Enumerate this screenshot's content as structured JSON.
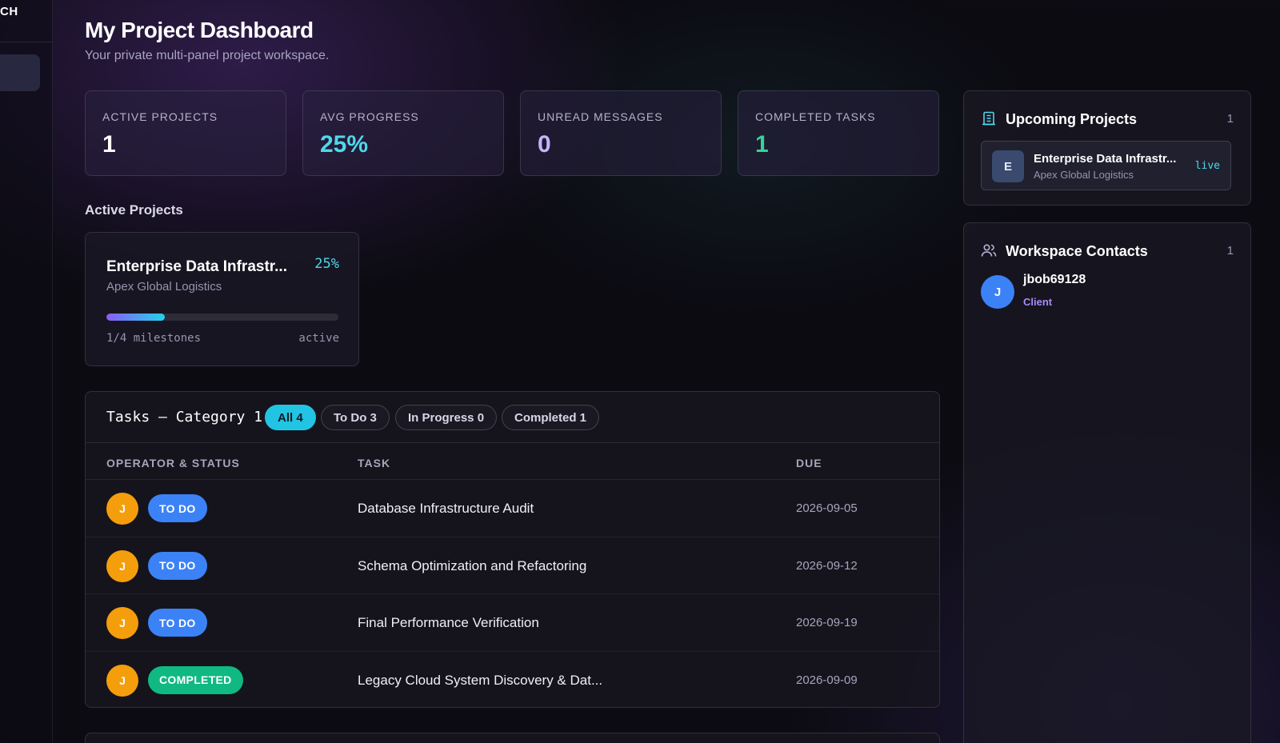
{
  "sidebar": {
    "logo_fragment": "CH"
  },
  "header": {
    "title": "My Project Dashboard",
    "subtitle": "Your private multi-panel project workspace."
  },
  "stats": [
    {
      "label": "ACTIVE PROJECTS",
      "value": "1",
      "color": "#ffffff"
    },
    {
      "label": "AVG PROGRESS",
      "value": "25%",
      "color": "#4fd8ea"
    },
    {
      "label": "UNREAD MESSAGES",
      "value": "0",
      "color": "#c4b5fd"
    },
    {
      "label": "COMPLETED TASKS",
      "value": "1",
      "color": "#34d399"
    }
  ],
  "active_projects": {
    "title": "Active Projects",
    "project": {
      "name": "Enterprise Data Infrastr...",
      "client": "Apex Global Logistics",
      "progress_label": "25%",
      "progress": 0.25,
      "milestones": "1/4 milestones",
      "state": "active"
    }
  },
  "tasks": {
    "title": "Tasks — Category 1",
    "filters": [
      {
        "label": "All 4",
        "active": true
      },
      {
        "label": "To Do 3",
        "active": false
      },
      {
        "label": "In Progress 0",
        "active": false
      },
      {
        "label": "Completed 1",
        "active": false
      }
    ],
    "columns": [
      "OPERATOR & STATUS",
      "TASK",
      "DUE"
    ],
    "rows": [
      {
        "operator": "J",
        "status": "TO DO",
        "status_type": "todo",
        "task": "Database Infrastructure Audit",
        "due": "2026-09-05"
      },
      {
        "operator": "J",
        "status": "TO DO",
        "status_type": "todo",
        "task": "Schema Optimization and Refactoring",
        "due": "2026-09-12"
      },
      {
        "operator": "J",
        "status": "TO DO",
        "status_type": "todo",
        "task": "Final Performance Verification",
        "due": "2026-09-19"
      },
      {
        "operator": "J",
        "status": "COMPLETED",
        "status_type": "done",
        "task": "Legacy Cloud System Discovery & Dat...",
        "due": "2026-09-09"
      }
    ]
  },
  "upcoming": {
    "title": "Upcoming Projects",
    "count": "1",
    "icon": "building-icon",
    "item": {
      "avatar": "E",
      "name": "Enterprise Data Infrastr...",
      "client": "Apex Global Logistics",
      "status": "live"
    }
  },
  "contacts": {
    "title": "Workspace Contacts",
    "count": "1",
    "icon": "users-icon",
    "item": {
      "avatar": "J",
      "name": "jbob69128",
      "role": "Client"
    }
  }
}
